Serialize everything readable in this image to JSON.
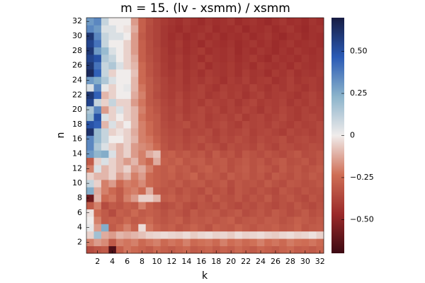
{
  "chart_data": {
    "type": "heatmap",
    "title": "m = 15. (lv - xsmm) / xsmm",
    "xlabel": "k",
    "ylabel": "n",
    "x": [
      1,
      2,
      3,
      4,
      5,
      6,
      7,
      8,
      9,
      10,
      11,
      12,
      13,
      14,
      15,
      16,
      17,
      18,
      19,
      20,
      21,
      22,
      23,
      24,
      25,
      26,
      27,
      28,
      29,
      30,
      31,
      32
    ],
    "y": [
      1,
      2,
      3,
      4,
      5,
      6,
      7,
      8,
      9,
      10,
      11,
      12,
      13,
      14,
      15,
      16,
      17,
      18,
      19,
      20,
      21,
      22,
      23,
      24,
      25,
      26,
      27,
      28,
      29,
      30,
      31,
      32
    ],
    "xlim": [
      0.5,
      32.5
    ],
    "ylim": [
      0.5,
      32.5
    ],
    "xticks": [
      2,
      4,
      6,
      8,
      10,
      12,
      14,
      16,
      18,
      20,
      22,
      24,
      26,
      28,
      30,
      32
    ],
    "yticks": [
      2,
      4,
      6,
      8,
      10,
      12,
      14,
      16,
      18,
      20,
      22,
      24,
      26,
      28,
      30,
      32
    ],
    "clim": [
      -0.7,
      0.7
    ],
    "cticks": [
      {
        "value": -0.5,
        "label": "−0.50"
      },
      {
        "value": -0.25,
        "label": "−0.25"
      },
      0,
      0.25,
      {
        "value": 0.5,
        "label": "0.50"
      }
    ],
    "colormap": [
      "#3c0912",
      "#9b2a2a",
      "#cf6e55",
      "#f0eceb",
      "#8bb3cb",
      "#2a5ab5",
      "#171c42"
    ],
    "z": [
      [
        -0.35,
        -0.32,
        -0.3,
        -0.65,
        -0.28,
        -0.22,
        -0.25,
        -0.27,
        -0.3,
        -0.25,
        -0.28,
        -0.3,
        -0.27,
        -0.25,
        -0.3,
        -0.28,
        -0.26,
        -0.3,
        -0.27,
        -0.29,
        -0.25,
        -0.28,
        -0.3,
        -0.26,
        -0.28,
        -0.3,
        -0.27,
        -0.25,
        -0.29,
        -0.28,
        -0.3,
        -0.27
      ],
      [
        -0.2,
        -0.15,
        -0.18,
        -0.3,
        -0.2,
        -0.22,
        -0.2,
        -0.25,
        -0.22,
        -0.2,
        -0.25,
        -0.22,
        -0.24,
        -0.2,
        -0.25,
        -0.23,
        -0.22,
        -0.25,
        -0.2,
        -0.24,
        -0.22,
        -0.25,
        -0.23,
        -0.2,
        -0.24,
        -0.22,
        -0.25,
        -0.21,
        -0.23,
        -0.24,
        -0.22,
        -0.25
      ],
      [
        -0.05,
        0.18,
        -0.12,
        -0.15,
        -0.1,
        -0.12,
        -0.1,
        -0.08,
        -0.05,
        -0.04,
        -0.03,
        -0.04,
        -0.05,
        -0.03,
        -0.06,
        -0.04,
        -0.03,
        -0.05,
        -0.04,
        -0.06,
        -0.03,
        -0.05,
        -0.04,
        -0.03,
        -0.05,
        -0.06,
        -0.04,
        -0.03,
        -0.05,
        -0.04,
        -0.02,
        -0.05
      ],
      [
        0.02,
        -0.15,
        0.25,
        -0.3,
        -0.25,
        -0.2,
        -0.27,
        -0.03,
        -0.22,
        -0.27,
        -0.3,
        -0.28,
        -0.32,
        -0.3,
        -0.27,
        -0.3,
        -0.33,
        -0.28,
        -0.3,
        -0.31,
        -0.27,
        -0.3,
        -0.32,
        -0.29,
        -0.3,
        -0.28,
        -0.31,
        -0.3,
        -0.27,
        -0.32,
        -0.3,
        -0.29
      ],
      [
        0.0,
        -0.2,
        -0.3,
        -0.28,
        -0.3,
        -0.25,
        -0.3,
        -0.28,
        -0.25,
        -0.3,
        -0.32,
        -0.3,
        -0.28,
        -0.33,
        -0.3,
        -0.31,
        -0.29,
        -0.32,
        -0.3,
        -0.28,
        -0.33,
        -0.31,
        -0.3,
        -0.32,
        -0.29,
        -0.3,
        -0.33,
        -0.31,
        -0.28,
        -0.3,
        -0.32,
        -0.3
      ],
      [
        -0.02,
        -0.25,
        -0.3,
        -0.35,
        -0.28,
        -0.3,
        -0.25,
        -0.3,
        -0.28,
        -0.3,
        -0.33,
        -0.3,
        -0.32,
        -0.35,
        -0.3,
        -0.33,
        -0.31,
        -0.3,
        -0.34,
        -0.32,
        -0.3,
        -0.35,
        -0.33,
        -0.31,
        -0.34,
        -0.3,
        -0.32,
        -0.35,
        -0.33,
        -0.3,
        -0.34,
        -0.32
      ],
      [
        -0.3,
        -0.2,
        -0.35,
        -0.3,
        -0.32,
        -0.28,
        -0.3,
        -0.2,
        -0.28,
        -0.32,
        -0.35,
        -0.33,
        -0.3,
        -0.34,
        -0.36,
        -0.32,
        -0.33,
        -0.35,
        -0.31,
        -0.34,
        -0.36,
        -0.33,
        -0.35,
        -0.32,
        -0.34,
        -0.36,
        -0.33,
        -0.35,
        -0.31,
        -0.34,
        -0.36,
        -0.33
      ],
      [
        -0.58,
        -0.1,
        -0.25,
        -0.22,
        -0.3,
        -0.2,
        -0.15,
        -0.05,
        -0.05,
        -0.1,
        -0.3,
        -0.28,
        -0.32,
        -0.3,
        -0.33,
        -0.31,
        -0.35,
        -0.3,
        -0.33,
        -0.34,
        -0.31,
        -0.35,
        -0.32,
        -0.34,
        -0.3,
        -0.35,
        -0.33,
        -0.31,
        -0.34,
        -0.36,
        -0.32,
        -0.34
      ],
      [
        0.25,
        -0.12,
        -0.2,
        -0.25,
        -0.3,
        -0.22,
        -0.2,
        -0.25,
        -0.12,
        -0.3,
        -0.32,
        -0.3,
        -0.34,
        -0.31,
        -0.33,
        -0.35,
        -0.3,
        -0.34,
        -0.32,
        -0.36,
        -0.31,
        -0.33,
        -0.35,
        -0.32,
        -0.34,
        -0.36,
        -0.31,
        -0.33,
        -0.35,
        -0.32,
        -0.34,
        -0.33
      ],
      [
        0.1,
        -0.05,
        -0.2,
        -0.15,
        -0.25,
        -0.2,
        -0.22,
        -0.18,
        -0.25,
        -0.28,
        -0.3,
        -0.32,
        -0.29,
        -0.33,
        -0.31,
        -0.3,
        -0.34,
        -0.32,
        -0.3,
        -0.35,
        -0.31,
        -0.33,
        -0.32,
        -0.34,
        -0.3,
        -0.33,
        -0.35,
        -0.31,
        -0.32,
        -0.34,
        -0.33,
        -0.31
      ],
      [
        -0.05,
        -0.1,
        -0.1,
        -0.05,
        -0.15,
        -0.1,
        -0.2,
        -0.15,
        -0.25,
        -0.28,
        -0.3,
        -0.28,
        -0.32,
        -0.3,
        -0.27,
        -0.33,
        -0.3,
        -0.31,
        -0.34,
        -0.29,
        -0.32,
        -0.3,
        -0.33,
        -0.31,
        -0.35,
        -0.3,
        -0.32,
        -0.34,
        -0.31,
        -0.33,
        -0.3,
        -0.32
      ],
      [
        -0.2,
        0.05,
        -0.1,
        -0.05,
        -0.1,
        -0.05,
        -0.15,
        -0.12,
        -0.2,
        -0.28,
        -0.3,
        -0.27,
        -0.31,
        -0.29,
        -0.33,
        -0.3,
        -0.28,
        -0.32,
        -0.3,
        -0.34,
        -0.31,
        -0.29,
        -0.33,
        -0.3,
        -0.32,
        -0.35,
        -0.3,
        -0.33,
        -0.31,
        -0.34,
        -0.32,
        -0.3
      ],
      [
        -0.3,
        -0.05,
        0.05,
        -0.05,
        -0.1,
        -0.15,
        -0.1,
        -0.2,
        -0.25,
        -0.12,
        -0.28,
        -0.3,
        -0.27,
        -0.32,
        -0.3,
        -0.29,
        -0.33,
        -0.31,
        -0.3,
        -0.34,
        -0.32,
        -0.3,
        -0.33,
        -0.31,
        -0.35,
        -0.32,
        -0.3,
        -0.34,
        -0.33,
        -0.31,
        -0.35,
        -0.32
      ],
      [
        0.3,
        0.22,
        0.25,
        0.05,
        -0.1,
        -0.05,
        -0.15,
        -0.2,
        -0.12,
        -0.08,
        -0.3,
        -0.28,
        -0.32,
        -0.3,
        -0.33,
        -0.31,
        -0.35,
        -0.3,
        -0.34,
        -0.32,
        -0.36,
        -0.31,
        -0.33,
        -0.35,
        -0.32,
        -0.34,
        -0.36,
        -0.33,
        -0.31,
        -0.35,
        -0.34,
        -0.32
      ],
      [
        0.35,
        0.15,
        0.05,
        -0.05,
        -0.1,
        -0.05,
        -0.15,
        -0.18,
        -0.2,
        -0.25,
        -0.32,
        -0.35,
        -0.33,
        -0.36,
        -0.34,
        -0.37,
        -0.33,
        -0.35,
        -0.38,
        -0.34,
        -0.36,
        -0.35,
        -0.37,
        -0.33,
        -0.36,
        -0.38,
        -0.34,
        -0.35,
        -0.37,
        -0.36,
        -0.34,
        -0.35
      ],
      [
        0.35,
        0.2,
        0.1,
        0.0,
        0.0,
        -0.05,
        -0.1,
        -0.2,
        -0.22,
        -0.28,
        -0.33,
        -0.35,
        -0.34,
        -0.37,
        -0.35,
        -0.33,
        -0.36,
        -0.38,
        -0.35,
        -0.37,
        -0.34,
        -0.36,
        -0.38,
        -0.35,
        -0.37,
        -0.36,
        -0.34,
        -0.38,
        -0.36,
        -0.35,
        -0.37,
        -0.36
      ],
      [
        0.62,
        0.2,
        0.1,
        -0.05,
        -0.02,
        -0.05,
        -0.12,
        -0.2,
        -0.25,
        -0.3,
        -0.34,
        -0.36,
        -0.35,
        -0.38,
        -0.36,
        -0.37,
        -0.35,
        -0.39,
        -0.36,
        -0.38,
        -0.37,
        -0.35,
        -0.39,
        -0.37,
        -0.36,
        -0.38,
        -0.4,
        -0.36,
        -0.38,
        -0.37,
        -0.39,
        -0.36
      ],
      [
        0.5,
        0.45,
        -0.1,
        0.05,
        -0.05,
        0.0,
        -0.1,
        -0.2,
        -0.25,
        -0.3,
        -0.35,
        -0.37,
        -0.36,
        -0.34,
        -0.38,
        -0.36,
        -0.39,
        -0.37,
        -0.35,
        -0.38,
        -0.4,
        -0.36,
        -0.38,
        -0.37,
        -0.39,
        -0.36,
        -0.38,
        -0.4,
        -0.37,
        -0.39,
        -0.38,
        -0.36
      ],
      [
        0.2,
        0.5,
        0.05,
        -0.05,
        0.0,
        -0.05,
        -0.1,
        -0.22,
        -0.28,
        -0.3,
        -0.36,
        -0.38,
        -0.35,
        -0.39,
        -0.37,
        -0.36,
        -0.4,
        -0.38,
        -0.37,
        -0.39,
        -0.36,
        -0.41,
        -0.38,
        -0.37,
        -0.4,
        -0.38,
        -0.36,
        -0.39,
        -0.41,
        -0.38,
        -0.37,
        -0.39
      ],
      [
        0.15,
        0.35,
        -0.15,
        -0.05,
        0.05,
        -0.05,
        -0.1,
        -0.2,
        -0.28,
        -0.32,
        -0.36,
        -0.38,
        -0.37,
        -0.4,
        -0.38,
        -0.36,
        -0.39,
        -0.37,
        -0.41,
        -0.38,
        -0.4,
        -0.37,
        -0.39,
        -0.42,
        -0.38,
        -0.4,
        -0.37,
        -0.39,
        -0.41,
        -0.38,
        -0.4,
        -0.39
      ],
      [
        0.55,
        0.1,
        -0.05,
        0.1,
        -0.05,
        -0.05,
        -0.15,
        -0.22,
        -0.3,
        -0.33,
        -0.37,
        -0.39,
        -0.36,
        -0.4,
        -0.38,
        -0.41,
        -0.37,
        -0.39,
        -0.4,
        -0.38,
        -0.42,
        -0.39,
        -0.37,
        -0.41,
        -0.39,
        -0.4,
        -0.38,
        -0.42,
        -0.39,
        -0.41,
        -0.38,
        -0.4
      ],
      [
        0.6,
        0.45,
        -0.1,
        -0.05,
        0.0,
        0.0,
        -0.12,
        -0.2,
        -0.3,
        -0.35,
        -0.38,
        -0.4,
        -0.37,
        -0.41,
        -0.39,
        -0.38,
        -0.42,
        -0.4,
        -0.38,
        -0.41,
        -0.39,
        -0.43,
        -0.4,
        -0.38,
        -0.42,
        -0.4,
        -0.39,
        -0.41,
        -0.43,
        -0.4,
        -0.38,
        -0.41
      ],
      [
        0.05,
        0.35,
        0.02,
        -0.05,
        0.0,
        0.02,
        -0.1,
        -0.22,
        -0.3,
        -0.34,
        -0.38,
        -0.4,
        -0.39,
        -0.42,
        -0.4,
        -0.38,
        -0.41,
        -0.43,
        -0.39,
        -0.41,
        -0.4,
        -0.42,
        -0.38,
        -0.41,
        -0.43,
        -0.4,
        -0.42,
        -0.39,
        -0.41,
        -0.43,
        -0.4,
        -0.42
      ],
      [
        0.3,
        0.25,
        0.15,
        0.05,
        0.0,
        0.0,
        -0.1,
        -0.25,
        -0.3,
        -0.35,
        -0.38,
        -0.41,
        -0.39,
        -0.43,
        -0.4,
        -0.42,
        -0.39,
        -0.41,
        -0.44,
        -0.4,
        -0.42,
        -0.39,
        -0.43,
        -0.41,
        -0.4,
        -0.44,
        -0.42,
        -0.39,
        -0.43,
        -0.41,
        -0.4,
        -0.42
      ],
      [
        0.65,
        0.45,
        0.1,
        -0.05,
        0.0,
        0.0,
        -0.08,
        -0.25,
        -0.32,
        -0.36,
        -0.4,
        -0.42,
        -0.39,
        -0.43,
        -0.41,
        -0.44,
        -0.4,
        -0.42,
        -0.43,
        -0.41,
        -0.44,
        -0.4,
        -0.43,
        -0.42,
        -0.45,
        -0.41,
        -0.43,
        -0.4,
        -0.44,
        -0.42,
        -0.43,
        -0.41
      ],
      [
        0.6,
        0.4,
        0.1,
        0.15,
        0.05,
        -0.05,
        -0.1,
        -0.25,
        -0.32,
        -0.36,
        -0.4,
        -0.43,
        -0.41,
        -0.44,
        -0.42,
        -0.4,
        -0.45,
        -0.42,
        -0.43,
        -0.41,
        -0.44,
        -0.42,
        -0.45,
        -0.41,
        -0.43,
        -0.44,
        -0.42,
        -0.45,
        -0.41,
        -0.43,
        -0.44,
        -0.42
      ],
      [
        0.55,
        0.5,
        0.15,
        0.1,
        0.0,
        -0.05,
        -0.12,
        -0.28,
        -0.33,
        -0.37,
        -0.41,
        -0.43,
        -0.4,
        -0.44,
        -0.42,
        -0.45,
        -0.41,
        -0.43,
        -0.44,
        -0.42,
        -0.45,
        -0.43,
        -0.41,
        -0.44,
        -0.46,
        -0.42,
        -0.44,
        -0.43,
        -0.45,
        -0.42,
        -0.44,
        -0.43
      ],
      [
        0.6,
        0.3,
        0.2,
        0.05,
        0.0,
        -0.05,
        -0.15,
        -0.28,
        -0.34,
        -0.37,
        -0.41,
        -0.44,
        -0.42,
        -0.45,
        -0.43,
        -0.41,
        -0.45,
        -0.43,
        -0.44,
        -0.42,
        -0.46,
        -0.43,
        -0.45,
        -0.42,
        -0.44,
        -0.46,
        -0.43,
        -0.45,
        -0.42,
        -0.44,
        -0.45,
        -0.43
      ],
      [
        0.55,
        0.4,
        0.1,
        0.0,
        0.0,
        -0.05,
        -0.15,
        -0.28,
        -0.34,
        -0.38,
        -0.42,
        -0.44,
        -0.41,
        -0.45,
        -0.43,
        -0.46,
        -0.42,
        -0.44,
        -0.45,
        -0.43,
        -0.46,
        -0.44,
        -0.42,
        -0.45,
        -0.43,
        -0.46,
        -0.44,
        -0.42,
        -0.45,
        -0.44,
        -0.43,
        -0.45
      ],
      [
        0.6,
        0.35,
        0.1,
        0.05,
        0.05,
        0.0,
        -0.15,
        -0.3,
        -0.35,
        -0.38,
        -0.42,
        -0.45,
        -0.43,
        -0.46,
        -0.44,
        -0.42,
        -0.45,
        -0.43,
        -0.46,
        -0.44,
        -0.45,
        -0.43,
        -0.46,
        -0.44,
        -0.42,
        -0.45,
        -0.47,
        -0.44,
        -0.43,
        -0.46,
        -0.44,
        -0.45
      ],
      [
        0.35,
        0.3,
        0.05,
        0.05,
        0.0,
        -0.02,
        -0.12,
        -0.28,
        -0.35,
        -0.38,
        -0.42,
        -0.44,
        -0.46,
        -0.43,
        -0.45,
        -0.44,
        -0.42,
        -0.46,
        -0.44,
        -0.45,
        -0.43,
        -0.47,
        -0.44,
        -0.45,
        -0.43,
        -0.46,
        -0.44,
        -0.42,
        -0.45,
        -0.47,
        -0.44,
        -0.43
      ],
      [
        0.3,
        0.35,
        0.1,
        0.0,
        0.0,
        0.0,
        -0.15,
        -0.28,
        -0.34,
        -0.38,
        -0.41,
        -0.43,
        -0.45,
        -0.42,
        -0.44,
        -0.46,
        -0.43,
        -0.45,
        -0.44,
        -0.42,
        -0.46,
        -0.44,
        -0.43,
        -0.45,
        -0.47,
        -0.44,
        -0.42,
        -0.45,
        -0.44,
        -0.46,
        -0.43,
        -0.45
      ]
    ]
  }
}
